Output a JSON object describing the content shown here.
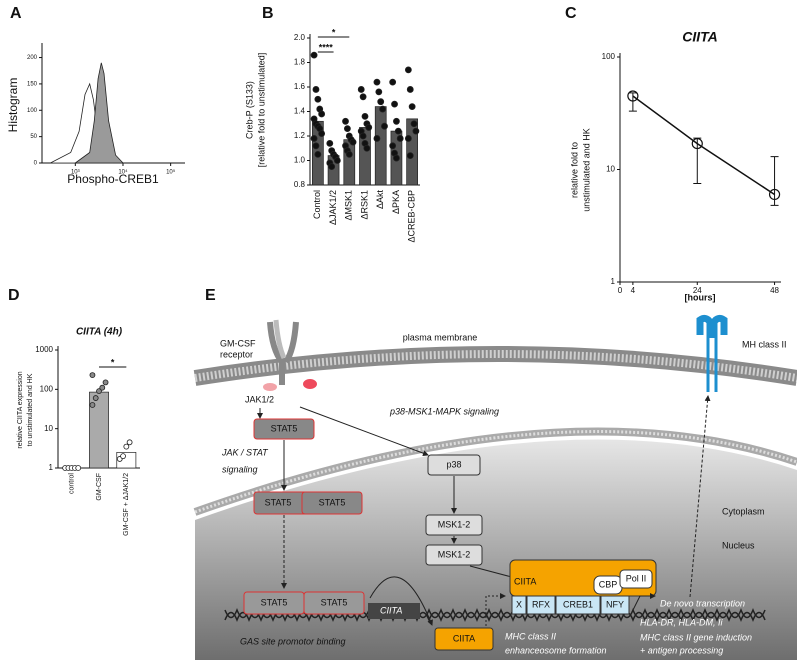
{
  "chart_data": [
    {
      "panel": "A",
      "type": "area",
      "x_label": "Phospho-CREB1",
      "y_label": "Histogram",
      "xscale": "log",
      "xlim": [
        200,
        200000
      ],
      "ylim": [
        0,
        220
      ],
      "xticks": [
        {
          "value": 1000,
          "label": "10³"
        },
        {
          "value": 10000,
          "label": "10⁴"
        },
        {
          "value": 100000,
          "label": "10⁵"
        }
      ],
      "yticks": [
        0,
        50,
        100,
        150,
        200
      ],
      "series": [
        {
          "color": "#ffffff",
          "x": [
            300,
            800,
            1200,
            1600,
            2000,
            2400,
            3000,
            4000,
            6000
          ],
          "values": [
            0,
            20,
            60,
            130,
            150,
            120,
            50,
            10,
            0
          ]
        },
        {
          "color": "#9a9a9a",
          "x": [
            1000,
            2000,
            2500,
            3000,
            3500,
            4000,
            5000,
            7000,
            10000
          ],
          "values": [
            0,
            20,
            80,
            160,
            190,
            170,
            80,
            15,
            0
          ]
        }
      ]
    },
    {
      "panel": "B",
      "type": "bar",
      "y_label": [
        "Creb-P (S133)",
        "[relative fold to unstimulated]"
      ],
      "categories": [
        "Control",
        "ΔJAK1/2",
        "ΔMSK1",
        "ΔRSK1",
        "ΔAkt",
        "ΔPKA",
        "ΔCREB-CBP"
      ],
      "values": [
        1.32,
        1.04,
        1.17,
        1.27,
        1.44,
        1.24,
        1.34
      ],
      "colors": [
        "#555555",
        "#555555",
        "#555555",
        "#555555",
        "#555555",
        "#555555",
        "#555555"
      ],
      "points": [
        [
          1.86,
          1.58,
          1.5,
          1.42,
          1.38,
          1.34,
          1.3,
          1.28,
          1.26,
          1.22,
          1.18,
          1.12,
          1.05
        ],
        [
          1.14,
          1.08,
          1.05,
          1.03,
          1.0,
          0.98,
          0.95
        ],
        [
          1.32,
          1.26,
          1.2,
          1.17,
          1.15,
          1.12,
          1.08,
          1.05
        ],
        [
          1.58,
          1.52,
          1.36,
          1.3,
          1.27,
          1.24,
          1.2,
          1.14,
          1.1
        ],
        [
          1.64,
          1.56,
          1.48,
          1.42,
          1.28,
          1.18
        ],
        [
          1.64,
          1.46,
          1.32,
          1.24,
          1.18,
          1.12,
          1.06,
          1.02
        ],
        [
          1.74,
          1.58,
          1.44,
          1.3,
          1.24,
          1.18,
          1.04
        ]
      ],
      "annotations": [
        "****",
        "*"
      ],
      "ylim": [
        0.8,
        2.0
      ],
      "yticks": [
        0.8,
        {
          "value": 1,
          "label": "1.0"
        },
        1.2,
        1.4,
        1.6,
        1.8,
        {
          "value": 2,
          "label": "2.0"
        }
      ]
    },
    {
      "panel": "C",
      "type": "line",
      "title": "CIITA",
      "y_label": [
        "relative fold to",
        "unstimulated and HK"
      ],
      "x_label": "[hours]",
      "yscale": "log",
      "x": [
        4,
        24,
        48
      ],
      "values": [
        45,
        17,
        6
      ],
      "lower": [
        33,
        7.5,
        4.8
      ],
      "upper": [
        48,
        19,
        13
      ],
      "xlim": [
        0,
        50
      ],
      "ylim": [
        1,
        100
      ],
      "xticks": [
        0,
        4,
        24,
        48
      ],
      "yticks": [
        1,
        10,
        100
      ]
    },
    {
      "panel": "D",
      "type": "bar",
      "title": "CIITA (4h)",
      "y_label": [
        "relative CIITA expression",
        "to unstimulated and HK"
      ],
      "yscale": "log",
      "categories": [
        "control",
        "GM-CSF",
        "GM-CSF + ΔJAK1/2"
      ],
      "values": [
        1,
        85,
        2.5
      ],
      "colors": [
        "#ffffff",
        "#aaaaaa",
        "#ffffff"
      ],
      "points": [
        [
          1,
          1,
          1,
          1,
          1
        ],
        [
          40,
          60,
          90,
          110,
          150,
          230
        ],
        [
          1.7,
          2,
          3.5,
          4.5
        ]
      ],
      "annotations": [
        "*"
      ],
      "ylim": [
        1,
        1000
      ],
      "yticks": [
        1,
        10,
        100,
        1000
      ]
    }
  ],
  "diagram": {
    "panel": "E",
    "receptor": [
      "GM-CSF",
      "receptor"
    ],
    "plasma_membrane": "plasma membrane",
    "mhc": "MH class II",
    "jak": "JAK1/2",
    "p38_path": "p38-MSK1-MAPK signaling",
    "p38": "p38",
    "stat5": "STAT5",
    "jak_stat": [
      "JAK / STAT",
      "signaling"
    ],
    "msk": "MSK1-2",
    "cytoplasm": "Cytoplasm",
    "nucleus": "Nucleus",
    "ciita": "CIITA",
    "cbp": "CBP",
    "pol": "Pol II",
    "x": "X",
    "rfx": "RFX",
    "creb": "CREB1",
    "nfy": "NFY",
    "de_novo": "De novo transcription",
    "hla": "HLA-DR, HLA-DM, Ii",
    "induction": [
      "MHC class II gene induction",
      "+ antigen processing"
    ],
    "gas": "GAS site promotor binding",
    "enhanceosome": [
      "MHC class II",
      "enhanceosome formation"
    ]
  }
}
